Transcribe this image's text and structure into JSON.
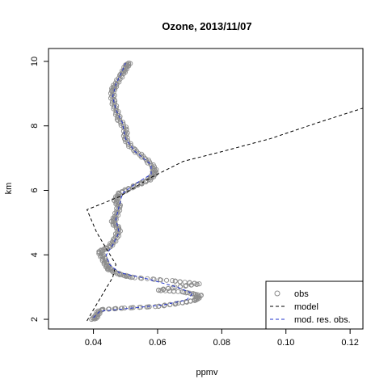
{
  "chart_data": {
    "type": "line",
    "title": "Ozone, 2013/11/07",
    "xlabel": "ppmv",
    "ylabel": "km",
    "xlim": [
      0.026,
      0.124
    ],
    "ylim": [
      1.7,
      10.4
    ],
    "xticks": [
      0.04,
      0.06,
      0.08,
      0.1,
      0.12
    ],
    "xtick_labels": [
      "0.04",
      "0.06",
      "0.08",
      "0.10",
      "0.12"
    ],
    "yticks": [
      2,
      4,
      6,
      8,
      10
    ],
    "ytick_labels": [
      "2",
      "4",
      "6",
      "8",
      "10"
    ],
    "grid": false,
    "legend_position": "bottom-right",
    "legend": [
      "obs",
      "model",
      "mod. res. obs."
    ],
    "colors": {
      "obs": "#8c8c8c",
      "model": "#000000",
      "mod_res_obs": "#2233cc"
    },
    "series": [
      {
        "name": "obs",
        "style": "points",
        "points": [
          [
            0.04,
            2.0
          ],
          [
            0.041,
            2.1
          ],
          [
            0.042,
            2.3
          ],
          [
            0.05,
            2.35
          ],
          [
            0.06,
            2.4
          ],
          [
            0.067,
            2.5
          ],
          [
            0.072,
            2.6
          ],
          [
            0.073,
            2.75
          ],
          [
            0.068,
            2.85
          ],
          [
            0.06,
            2.9
          ],
          [
            0.066,
            3.0
          ],
          [
            0.073,
            3.1
          ],
          [
            0.064,
            3.2
          ],
          [
            0.052,
            3.3
          ],
          [
            0.048,
            3.4
          ],
          [
            0.045,
            3.55
          ],
          [
            0.044,
            3.7
          ],
          [
            0.043,
            3.9
          ],
          [
            0.042,
            4.1
          ],
          [
            0.045,
            4.25
          ],
          [
            0.047,
            4.5
          ],
          [
            0.048,
            4.8
          ],
          [
            0.046,
            5.0
          ],
          [
            0.047,
            5.2
          ],
          [
            0.048,
            5.5
          ],
          [
            0.047,
            5.7
          ],
          [
            0.048,
            5.9
          ],
          [
            0.052,
            6.1
          ],
          [
            0.057,
            6.3
          ],
          [
            0.059,
            6.5
          ],
          [
            0.059,
            6.7
          ],
          [
            0.056,
            7.0
          ],
          [
            0.052,
            7.3
          ],
          [
            0.05,
            7.6
          ],
          [
            0.05,
            7.9
          ],
          [
            0.048,
            8.2
          ],
          [
            0.047,
            8.5
          ],
          [
            0.046,
            8.8
          ],
          [
            0.046,
            9.1
          ],
          [
            0.047,
            9.3
          ],
          [
            0.049,
            9.6
          ],
          [
            0.05,
            9.8
          ],
          [
            0.051,
            9.95
          ]
        ]
      },
      {
        "name": "model",
        "style": "dashed",
        "points": [
          [
            0.038,
            1.95
          ],
          [
            0.04,
            2.3
          ],
          [
            0.043,
            2.8
          ],
          [
            0.046,
            3.3
          ],
          [
            0.047,
            3.7
          ],
          [
            0.044,
            4.2
          ],
          [
            0.041,
            4.7
          ],
          [
            0.038,
            5.4
          ],
          [
            0.048,
            5.8
          ],
          [
            0.058,
            6.4
          ],
          [
            0.068,
            6.9
          ],
          [
            0.08,
            7.2
          ],
          [
            0.095,
            7.6
          ],
          [
            0.11,
            8.1
          ],
          [
            0.124,
            8.55
          ]
        ]
      },
      {
        "name": "mod. res. obs.",
        "style": "dashed",
        "points": [
          [
            0.04,
            2.05
          ],
          [
            0.042,
            2.25
          ],
          [
            0.052,
            2.35
          ],
          [
            0.062,
            2.45
          ],
          [
            0.069,
            2.6
          ],
          [
            0.071,
            2.8
          ],
          [
            0.066,
            3.0
          ],
          [
            0.057,
            3.25
          ],
          [
            0.048,
            3.45
          ],
          [
            0.045,
            3.7
          ],
          [
            0.044,
            4.0
          ],
          [
            0.046,
            4.3
          ],
          [
            0.048,
            4.7
          ],
          [
            0.047,
            5.1
          ],
          [
            0.048,
            5.5
          ],
          [
            0.049,
            5.9
          ],
          [
            0.053,
            6.2
          ],
          [
            0.058,
            6.5
          ],
          [
            0.058,
            6.8
          ],
          [
            0.053,
            7.2
          ],
          [
            0.05,
            7.6
          ],
          [
            0.049,
            8.1
          ],
          [
            0.047,
            8.5
          ],
          [
            0.046,
            8.9
          ],
          [
            0.047,
            9.3
          ],
          [
            0.049,
            9.7
          ],
          [
            0.05,
            9.95
          ]
        ]
      }
    ]
  }
}
